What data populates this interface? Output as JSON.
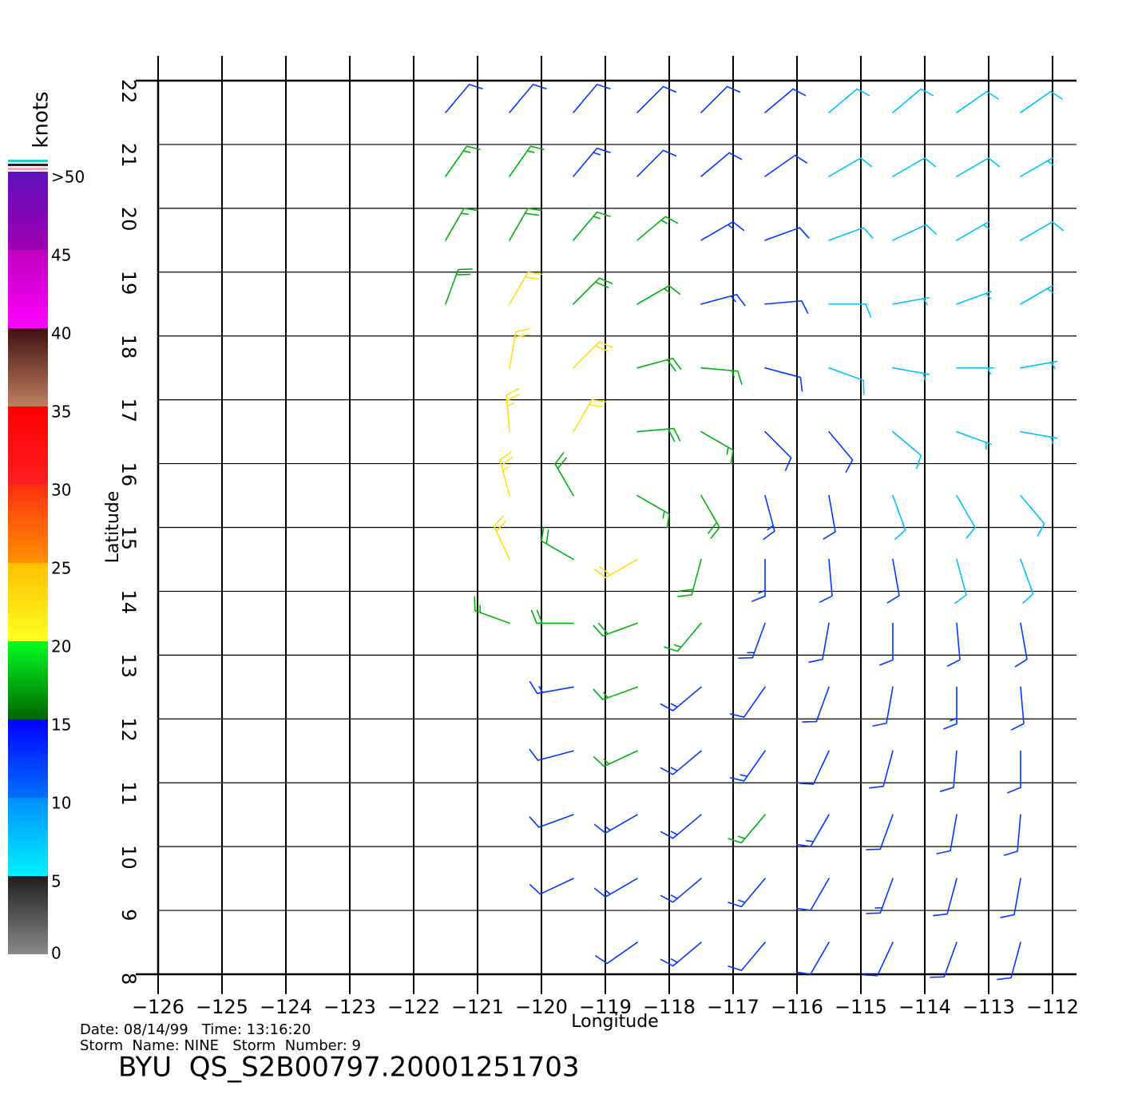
{
  "chart_data": {
    "type": "barbs",
    "xlabel": "Longitude",
    "ylabel": "Latitude",
    "annotations": [
      "Date: 08/14/99   Time: 13:16:20",
      "Storm  Name: NINE   Storm  Number: 9",
      "BYU  QS_S2B00797.20001251703"
    ],
    "xlim": [
      -126,
      -112
    ],
    "ylim": [
      8,
      22
    ],
    "xticks": [
      {
        "value": -126,
        "label": "−126"
      },
      {
        "value": -125,
        "label": "−125"
      },
      {
        "value": -124,
        "label": "−124"
      },
      {
        "value": -123,
        "label": "−123"
      },
      {
        "value": -122,
        "label": "−122"
      },
      {
        "value": -121,
        "label": "−121"
      },
      {
        "value": -120,
        "label": "−120"
      },
      {
        "value": -119,
        "label": "−119"
      },
      {
        "value": -118,
        "label": "−118"
      },
      {
        "value": -117,
        "label": "−117"
      },
      {
        "value": -116,
        "label": "−116"
      },
      {
        "value": -115,
        "label": "−115"
      },
      {
        "value": -114,
        "label": "−114"
      },
      {
        "value": -113,
        "label": "−113"
      },
      {
        "value": -112,
        "label": "−112"
      }
    ],
    "yticks": [
      8,
      9,
      10,
      11,
      12,
      13,
      14,
      15,
      16,
      17,
      18,
      19,
      20,
      21,
      22
    ],
    "grid": true,
    "lon": [
      -122.5,
      -121.5,
      -120.5,
      -119.5,
      -118.5,
      -117.5,
      -116.5,
      -115.5,
      -114.5,
      -113.5,
      -112.5
    ],
    "lat": [
      21.5,
      20.5,
      19.5,
      18.5,
      17.5,
      16.5,
      15.5,
      14.5,
      13.5,
      12.5,
      11.5,
      10.5,
      9.5,
      8.5
    ],
    "speed": [
      [
        null,
        12,
        12,
        11,
        11,
        10,
        10,
        9,
        9,
        8,
        8
      ],
      [
        null,
        16,
        15,
        13,
        12,
        11,
        10,
        9,
        8,
        8,
        7
      ],
      [
        null,
        17,
        18,
        17,
        15,
        13,
        11,
        9,
        8,
        7,
        8
      ],
      [
        null,
        18,
        21,
        19,
        17,
        13,
        10,
        8,
        7,
        6,
        5
      ],
      [
        null,
        null,
        21,
        22,
        19,
        15,
        11,
        9,
        7,
        6,
        5
      ],
      [
        null,
        null,
        23,
        21,
        18,
        16,
        12,
        10,
        8,
        7,
        7
      ],
      [
        null,
        null,
        24,
        19,
        17,
        18,
        14,
        11,
        9,
        8,
        8
      ],
      [
        null,
        null,
        22,
        18,
        20,
        19,
        14,
        11,
        10,
        9,
        9
      ],
      [
        null,
        null,
        17,
        18,
        18,
        16,
        13,
        11,
        10,
        10,
        10
      ],
      [
        null,
        null,
        null,
        14,
        15,
        14,
        12,
        11,
        12,
        13,
        11
      ],
      [
        null,
        null,
        null,
        12,
        15,
        13,
        13,
        12,
        12,
        11,
        10
      ],
      [
        null,
        null,
        null,
        12,
        14,
        14,
        15,
        13,
        11,
        10,
        10
      ],
      [
        null,
        null,
        null,
        11,
        13,
        14,
        13,
        12,
        13,
        11,
        10
      ],
      [
        null,
        null,
        null,
        null,
        12,
        13,
        12,
        11,
        11,
        10,
        10
      ]
    ],
    "direction": [
      [
        null,
        40,
        40,
        40,
        45,
        45,
        50,
        50,
        50,
        55,
        55
      ],
      [
        null,
        35,
        35,
        40,
        45,
        50,
        55,
        60,
        60,
        60,
        60
      ],
      [
        null,
        30,
        30,
        40,
        50,
        60,
        70,
        70,
        65,
        60,
        60
      ],
      [
        null,
        20,
        30,
        45,
        60,
        75,
        85,
        90,
        80,
        70,
        60
      ],
      [
        null,
        null,
        10,
        45,
        75,
        95,
        105,
        110,
        100,
        90,
        80
      ],
      [
        null,
        null,
        355,
        30,
        85,
        120,
        135,
        140,
        130,
        110,
        100
      ],
      [
        null,
        null,
        345,
        330,
        120,
        150,
        165,
        170,
        160,
        150,
        140
      ],
      [
        null,
        null,
        335,
        300,
        240,
        195,
        180,
        175,
        170,
        165,
        160
      ],
      [
        null,
        null,
        290,
        270,
        250,
        220,
        200,
        190,
        180,
        175,
        170
      ],
      [
        null,
        null,
        null,
        260,
        250,
        230,
        215,
        200,
        190,
        180,
        175
      ],
      [
        null,
        null,
        null,
        255,
        245,
        230,
        215,
        205,
        195,
        185,
        180
      ],
      [
        null,
        null,
        null,
        250,
        240,
        230,
        220,
        210,
        200,
        190,
        185
      ],
      [
        null,
        null,
        null,
        245,
        240,
        230,
        220,
        210,
        200,
        195,
        190
      ],
      [
        null,
        null,
        null,
        null,
        235,
        230,
        220,
        210,
        205,
        200,
        195
      ]
    ],
    "colorbar": {
      "label": "knots",
      "ticks": [
        0,
        5,
        10,
        15,
        20,
        25,
        30,
        35,
        40,
        45,
        {
          "value": 50,
          "label": ">50"
        }
      ],
      "colors": [
        [
          "#8a8a8a",
          "#1e1e1e"
        ],
        [
          "#00f0ff",
          "#0090ff"
        ],
        [
          "#0070ff",
          "#0000ff"
        ],
        [
          "#006400",
          "#00ff20"
        ],
        [
          "#ffff20",
          "#ffc000"
        ],
        [
          "#ff9000",
          "#ff3010"
        ],
        [
          "#ff2020",
          "#ff0000"
        ],
        [
          "#c08060",
          "#401010"
        ],
        [
          "#ff00ff",
          "#c000c0"
        ],
        [
          "#a000b0",
          "#6010c0"
        ]
      ]
    }
  }
}
